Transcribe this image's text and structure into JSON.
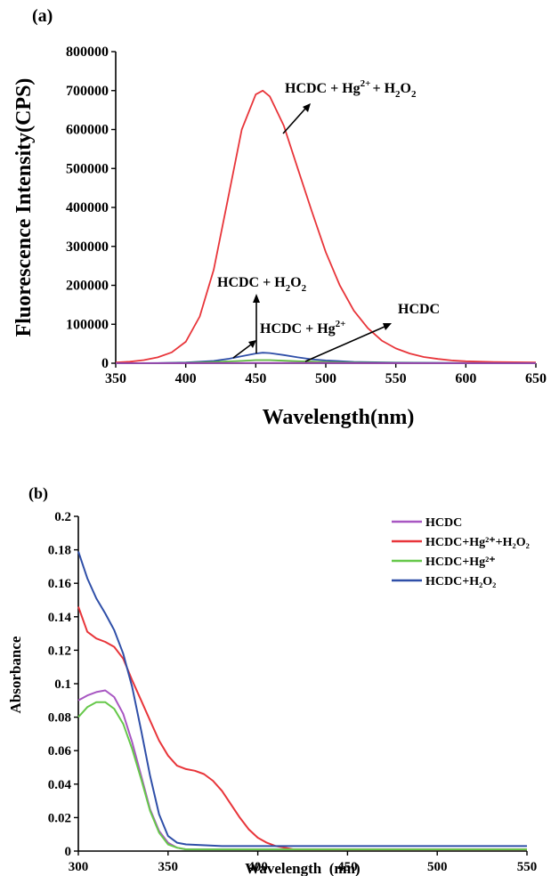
{
  "chart_data": [
    {
      "panel_label": "(a)",
      "type": "line",
      "xlabel": "Wavelength(nm)",
      "ylabel": "Fluorescence Intensity(CPS)",
      "xlim": [
        350,
        650
      ],
      "ylim": [
        0,
        800000
      ],
      "x_ticks": [
        "350",
        "400",
        "450",
        "500",
        "550",
        "600",
        "650"
      ],
      "y_ticks": [
        "0",
        "100000",
        "200000",
        "300000",
        "400000",
        "500000",
        "600000",
        "700000",
        "800000"
      ],
      "grid": false,
      "colors": {
        "red": "#e8353a",
        "blue": "#2f4fa8",
        "green": "#5cb83e",
        "purple": "#9b3fb5"
      },
      "series": [
        {
          "color": "#e8353a",
          "x": [
            350,
            360,
            370,
            380,
            390,
            400,
            410,
            420,
            430,
            440,
            450,
            455,
            460,
            470,
            480,
            490,
            500,
            510,
            520,
            530,
            540,
            550,
            560,
            570,
            580,
            590,
            600,
            620,
            650
          ],
          "values": [
            2000,
            4000,
            8000,
            15000,
            28000,
            55000,
            120000,
            240000,
            420000,
            600000,
            690000,
            700000,
            685000,
            610000,
            500000,
            390000,
            285000,
            200000,
            135000,
            90000,
            58000,
            38000,
            25000,
            16000,
            11000,
            7000,
            5000,
            3000,
            2000
          ]
        },
        {
          "color": "#2f4fa8",
          "x": [
            350,
            380,
            400,
            420,
            430,
            440,
            450,
            455,
            460,
            470,
            480,
            490,
            500,
            520,
            550,
            600,
            650
          ],
          "values": [
            0,
            500,
            2000,
            6000,
            11000,
            18000,
            25000,
            27000,
            26000,
            21000,
            15000,
            10000,
            7000,
            3500,
            1500,
            500,
            0
          ]
        },
        {
          "color": "#5cb83e",
          "x": [
            350,
            380,
            400,
            420,
            440,
            450,
            460,
            470,
            480,
            500,
            520,
            550,
            600,
            650
          ],
          "values": [
            0,
            300,
            1000,
            3000,
            6000,
            8000,
            8000,
            6500,
            5000,
            3000,
            1500,
            700,
            200,
            0
          ]
        },
        {
          "color": "#9b3fb5",
          "x": [
            350,
            400,
            450,
            500,
            550,
            600,
            650
          ],
          "values": [
            0,
            300,
            900,
            600,
            300,
            100,
            0
          ]
        }
      ],
      "annotations": {
        "a1": {
          "main": "HCDC + Hg",
          "sup": "2+",
          "mid": "+ H",
          "sub": "2",
          "tail": "O",
          "sub2": "2"
        },
        "a2": {
          "main": "HCDC + H",
          "sub": "2",
          "tail": "O",
          "sub2": "2"
        },
        "a3": {
          "main": "HCDC + Hg",
          "sup": "2+"
        },
        "a4": {
          "main": "HCDC"
        }
      }
    },
    {
      "panel_label": "(b)",
      "type": "line",
      "xlabel": "Wavelength  (nm)",
      "ylabel": "Absorbance",
      "xlim": [
        300,
        550
      ],
      "ylim": [
        0,
        0.2
      ],
      "x_ticks": [
        "300",
        "350",
        "400",
        "450",
        "500",
        "550"
      ],
      "y_ticks": [
        "0",
        "0.02",
        "0.04",
        "0.06",
        "0.08",
        "0.1",
        "0.12",
        "0.14",
        "0.16",
        "0.18",
        "0.2"
      ],
      "grid": false,
      "legend": "top-right",
      "series": [
        {
          "name": "HCDC",
          "color": "#a857c2",
          "x": [
            300,
            305,
            310,
            315,
            320,
            325,
            330,
            335,
            340,
            345,
            350,
            355,
            360,
            380,
            400,
            450,
            500,
            550
          ],
          "values": [
            0.09,
            0.093,
            0.095,
            0.096,
            0.092,
            0.082,
            0.065,
            0.045,
            0.025,
            0.012,
            0.005,
            0.002,
            0.001,
            0.001,
            0.001,
            0.001,
            0.001,
            0.001
          ]
        },
        {
          "name": "HCDC+Hg²⁺+H₂O₂",
          "color": "#e8353a",
          "x": [
            300,
            305,
            310,
            315,
            320,
            325,
            330,
            335,
            340,
            345,
            350,
            355,
            360,
            365,
            370,
            375,
            380,
            385,
            390,
            395,
            400,
            405,
            410,
            415,
            420,
            430,
            450,
            500,
            550
          ],
          "values": [
            0.146,
            0.131,
            0.127,
            0.125,
            0.122,
            0.115,
            0.102,
            0.09,
            0.078,
            0.066,
            0.057,
            0.051,
            0.049,
            0.048,
            0.046,
            0.042,
            0.036,
            0.028,
            0.02,
            0.013,
            0.008,
            0.005,
            0.003,
            0.002,
            0.001,
            0.001,
            0.001,
            0.001,
            0.001
          ]
        },
        {
          "name": "HCDC+Hg²⁺",
          "color": "#66c84a",
          "x": [
            300,
            305,
            310,
            315,
            320,
            325,
            330,
            335,
            340,
            345,
            350,
            355,
            360,
            380,
            400,
            450,
            500,
            550
          ],
          "values": [
            0.08,
            0.086,
            0.089,
            0.089,
            0.085,
            0.076,
            0.061,
            0.043,
            0.024,
            0.011,
            0.004,
            0.002,
            0.001,
            0.001,
            0.001,
            0.001,
            0.001,
            0.001
          ]
        },
        {
          "name": "HCDC+H₂O₂",
          "color": "#2f4fa8",
          "x": [
            300,
            305,
            310,
            315,
            320,
            325,
            330,
            335,
            340,
            345,
            350,
            355,
            360,
            380,
            400,
            450,
            500,
            550
          ],
          "values": [
            0.179,
            0.163,
            0.151,
            0.142,
            0.132,
            0.118,
            0.098,
            0.072,
            0.045,
            0.022,
            0.009,
            0.005,
            0.004,
            0.003,
            0.003,
            0.003,
            0.003,
            0.003
          ]
        }
      ]
    }
  ]
}
